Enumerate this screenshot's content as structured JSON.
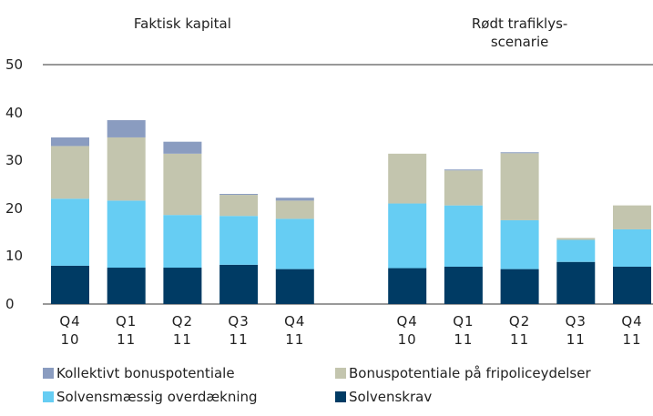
{
  "chart_data": {
    "type": "stacked_bar",
    "annotations": [
      "Faktisk kapital",
      "Rødt trafiklys-scenarie"
    ],
    "categories": [
      "Q4 10",
      "Q1 11",
      "Q2 11",
      "Q3 11",
      "Q4 11",
      null,
      "Q4 10",
      "Q1 11",
      "Q2 11",
      "Q3 11",
      "Q4 11"
    ],
    "series": [
      {
        "name": "Solvenskrav",
        "color": "#003b64",
        "values": [
          8,
          7.6,
          7.6,
          8.2,
          7.3,
          null,
          7.5,
          7.8,
          7.3,
          8.8,
          7.8
        ]
      },
      {
        "name": "Solvensmæssig overdækning",
        "color": "#66cdf3",
        "values": [
          14,
          14,
          11,
          10.2,
          10.5,
          null,
          13.5,
          12.8,
          10.2,
          4.6,
          7.8
        ]
      },
      {
        "name": "Bonuspotentiale på fripoliceydelser",
        "color": "#c3c5ae",
        "values": [
          11,
          13.2,
          12.8,
          4.4,
          3.8,
          null,
          10.4,
          7.3,
          14,
          0.4,
          5
        ]
      },
      {
        "name": "Kollektivt bonuspotentiale",
        "color": "#8a9cc0",
        "values": [
          1.8,
          3.6,
          2.5,
          0.2,
          0.6,
          null,
          0,
          0.2,
          0.2,
          0,
          0
        ]
      }
    ],
    "ylim": [
      0,
      50
    ],
    "yticks": [
      0,
      10,
      20,
      30,
      40,
      50
    ],
    "grid": false
  }
}
